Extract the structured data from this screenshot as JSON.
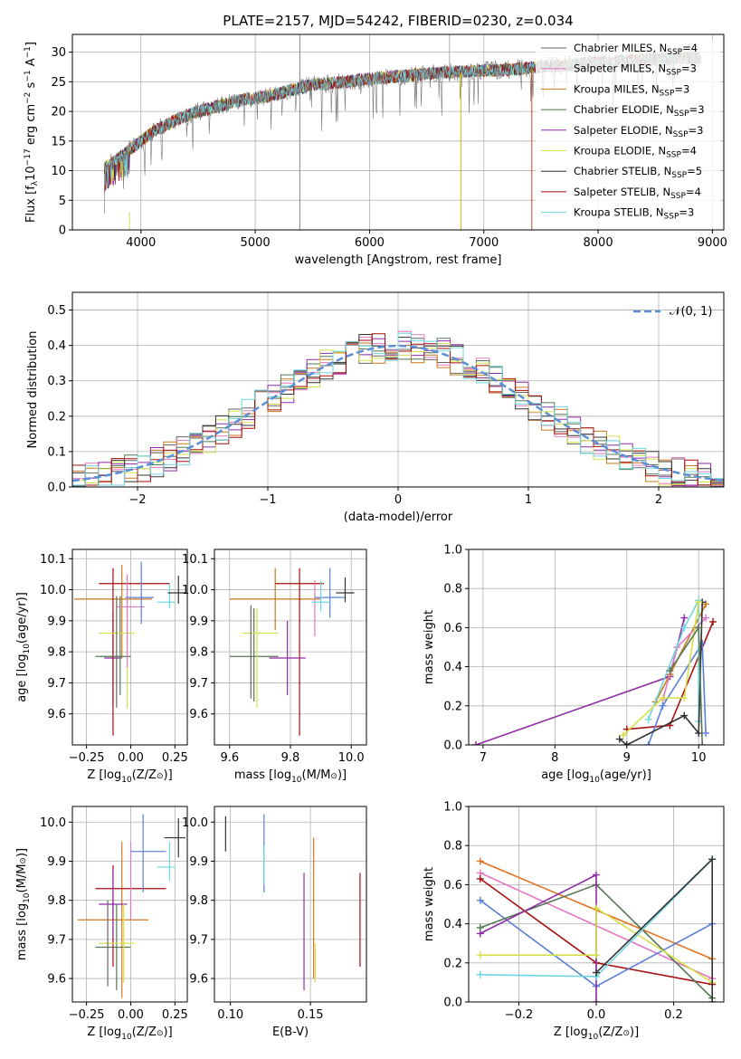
{
  "figure": {
    "title": "PLATE=2157, MJD=54242, FIBERID=0230, z=0.034"
  },
  "colors": {
    "c0": "#666666",
    "c1": "#e377c2",
    "c2": "#cc7a1c",
    "c3": "#557755",
    "c4": "#8e2ba5",
    "c5": "#d6e04a",
    "c6": "#333333",
    "c7": "#a50f0f",
    "c8": "#6fd6e0",
    "axis_blue": "#5b8fd6",
    "orange": "#e4701e",
    "blue": "#5b7fd6"
  },
  "chart_data": [
    {
      "id": "spectrum",
      "type": "line",
      "title": "PLATE=2157, MJD=54242, FIBERID=0230, z=0.034",
      "xlabel": "wavelength [Angstrom, rest frame]",
      "ylabel": "Flux [f",
      "ylabel_parts": [
        "Flux [f",
        "λ",
        "10",
        "−17",
        " erg cm",
        "−2",
        " s",
        "−1",
        " A",
        "−1",
        "]"
      ],
      "xlim": [
        3400,
        9100
      ],
      "ylim": [
        0,
        33
      ],
      "xticks": [
        "4000",
        "5000",
        "6000",
        "7000",
        "8000",
        "9000"
      ],
      "yticks": [
        "0",
        "5",
        "10",
        "15",
        "20",
        "25",
        "30"
      ],
      "legend_position": "top-right",
      "legend": [
        {
          "base": "Chabrier MILES, N",
          "sub": "SSP",
          "tail": "=4"
        },
        {
          "base": "Salpeter MILES, N",
          "sub": "SSP",
          "tail": "=3"
        },
        {
          "base": "Kroupa MILES, N",
          "sub": "SSP",
          "tail": "=3"
        },
        {
          "base": "Chabrier ELODIE, N",
          "sub": "SSP",
          "tail": "=3"
        },
        {
          "base": "Salpeter ELODIE, N",
          "sub": "SSP",
          "tail": "=3"
        },
        {
          "base": "Kroupa ELODIE, N",
          "sub": "SSP",
          "tail": "=4"
        },
        {
          "base": "Chabrier STELIB, N",
          "sub": "SSP",
          "tail": "=5"
        },
        {
          "base": "Salpeter STELIB, N",
          "sub": "SSP",
          "tail": "=4"
        },
        {
          "base": "Kroupa STELIB, N",
          "sub": "SSP",
          "tail": "=3"
        }
      ],
      "continuum": [
        [
          3680,
          10.5
        ],
        [
          3800,
          12
        ],
        [
          3900,
          13.5
        ],
        [
          4000,
          15
        ],
        [
          4100,
          16.5
        ],
        [
          4200,
          17.5
        ],
        [
          4300,
          18.5
        ],
        [
          4500,
          20
        ],
        [
          4700,
          21
        ],
        [
          4900,
          22
        ],
        [
          5100,
          22.5
        ],
        [
          5300,
          23.5
        ],
        [
          5500,
          24.5
        ],
        [
          5800,
          25
        ],
        [
          6000,
          25.5
        ],
        [
          6300,
          26
        ],
        [
          6600,
          26.5
        ],
        [
          6900,
          26.8
        ],
        [
          7200,
          27
        ],
        [
          7500,
          27.5
        ],
        [
          7800,
          28
        ],
        [
          8200,
          28.5
        ],
        [
          8500,
          28.8
        ],
        [
          8800,
          29
        ],
        [
          8900,
          29
        ]
      ]
    },
    {
      "id": "residuals",
      "type": "step",
      "xlabel": "(data-model)/error",
      "ylabel": "Normed distribution",
      "xlim": [
        -2.5,
        2.5
      ],
      "ylim": [
        0,
        0.55
      ],
      "xticks": [
        "−2",
        "−1",
        "0",
        "1",
        "2"
      ],
      "yticks": [
        "0.0",
        "0.1",
        "0.2",
        "0.3",
        "0.4",
        "0.5"
      ],
      "legend": "𝒩(0, 1)",
      "legend_position": "top-right",
      "bin_width": 0.1
    },
    {
      "id": "age-Z",
      "type": "errorbar",
      "xlabel": "Z [log",
      "xlabel_parts": [
        "Z [log",
        "10",
        "(Z/Z",
        "⊙",
        ")]"
      ],
      "ylabel_parts": [
        "age  [log",
        "10",
        "(age/yr)]"
      ],
      "xlim": [
        -0.33,
        0.32
      ],
      "ylim": [
        9.5,
        10.13
      ],
      "xticks": [
        "−0.25",
        "0.00",
        "0.25"
      ],
      "yticks": [
        "9.6",
        "9.7",
        "9.8",
        "9.9",
        "10.0",
        "10.1"
      ],
      "points": [
        {
          "c": "c2",
          "x": -0.1,
          "xe": 0.22,
          "y": 9.97,
          "ye": 0
        },
        {
          "c": "c2",
          "x": -0.05,
          "xe": 0,
          "y": 9.93,
          "ye": 0.15
        },
        {
          "c": "c4",
          "x": -0.1,
          "xe": 0.05,
          "y": 9.78,
          "ye": 0.15
        },
        {
          "c": "c7",
          "x": 0.02,
          "xe": 0.2,
          "y": 10.02,
          "ye": 0
        },
        {
          "c": "c7",
          "x": -0.1,
          "xe": 0,
          "y": 9.8,
          "ye": 0.27
        },
        {
          "c": "c3",
          "x": -0.1,
          "xe": 0.1,
          "y": 9.785,
          "ye": 0
        },
        {
          "c": "c3",
          "x": -0.06,
          "xe": 0,
          "y": 9.82,
          "ye": 0.16
        },
        {
          "c": "c5",
          "x": -0.08,
          "xe": 0.1,
          "y": 9.86,
          "ye": 0
        },
        {
          "c": "c5",
          "x": -0.02,
          "xe": 0,
          "y": 9.78,
          "ye": 0.16
        },
        {
          "c": "c1",
          "x": 0,
          "xe": 0.08,
          "y": 9.945,
          "ye": 0
        },
        {
          "c": "c1",
          "x": -0.02,
          "xe": 0,
          "y": 9.9,
          "ye": 0.15
        },
        {
          "c": "blue",
          "x": 0.06,
          "xe": 0,
          "y": 9.99,
          "ye": 0.1
        },
        {
          "c": "blue",
          "x": 0.05,
          "xe": 0.08,
          "y": 9.975,
          "ye": 0
        },
        {
          "c": "c8",
          "x": 0.2,
          "xe": 0.05,
          "y": 9.96,
          "ye": 0
        },
        {
          "c": "c8",
          "x": 0.22,
          "xe": 0,
          "y": 9.98,
          "ye": 0.04
        },
        {
          "c": "c6",
          "x": 0.27,
          "xe": 0.06,
          "y": 9.99,
          "ye": 0
        },
        {
          "c": "c6",
          "x": 0.27,
          "xe": 0,
          "y": 10.0,
          "ye": 0.045
        },
        {
          "c": "c0",
          "x": -0.08,
          "xe": 0,
          "y": 9.8,
          "ye": 0.18
        }
      ]
    },
    {
      "id": "age-mass",
      "type": "errorbar",
      "xlabel_parts": [
        "mass [log",
        "10",
        "(M/M",
        "⊙",
        ")]"
      ],
      "xlim": [
        9.55,
        10.05
      ],
      "ylim": [
        9.5,
        10.13
      ],
      "xticks": [
        "9.6",
        "9.8",
        "10.0"
      ],
      "yticks": [
        "9.6",
        "9.7",
        "9.8",
        "9.9",
        "10.0",
        "10.1"
      ],
      "points": [
        {
          "c": "c2",
          "x": 9.75,
          "xe": 0.15,
          "y": 9.97,
          "ye": 0
        },
        {
          "c": "c2",
          "x": 9.75,
          "xe": 0,
          "y": 9.97,
          "ye": 0.1
        },
        {
          "c": "c7",
          "x": 9.83,
          "xe": 0.08,
          "y": 10.02,
          "ye": 0
        },
        {
          "c": "c7",
          "x": 9.83,
          "xe": 0,
          "y": 9.8,
          "ye": 0.27
        },
        {
          "c": "c4",
          "x": 9.79,
          "xe": 0.06,
          "y": 9.78,
          "ye": 0
        },
        {
          "c": "c4",
          "x": 9.79,
          "xe": 0,
          "y": 9.78,
          "ye": 0.12
        },
        {
          "c": "c3",
          "x": 9.68,
          "xe": 0.08,
          "y": 9.785,
          "ye": 0
        },
        {
          "c": "c3",
          "x": 9.68,
          "xe": 0,
          "y": 9.79,
          "ye": 0.15
        },
        {
          "c": "c5",
          "x": 9.7,
          "xe": 0.06,
          "y": 9.86,
          "ye": 0
        },
        {
          "c": "c5",
          "x": 9.69,
          "xe": 0,
          "y": 9.78,
          "ye": 0.16
        },
        {
          "c": "c1",
          "x": 9.88,
          "xe": 0,
          "y": 9.94,
          "ye": 0.09
        },
        {
          "c": "blue",
          "x": 9.93,
          "xe": 0.05,
          "y": 9.975,
          "ye": 0
        },
        {
          "c": "blue",
          "x": 9.93,
          "xe": 0,
          "y": 9.99,
          "ye": 0.08
        },
        {
          "c": "c8",
          "x": 9.9,
          "xe": 0.03,
          "y": 9.96,
          "ye": 0
        },
        {
          "c": "c8",
          "x": 9.9,
          "xe": 0,
          "y": 9.98,
          "ye": 0.05
        },
        {
          "c": "c6",
          "x": 9.98,
          "xe": 0.03,
          "y": 9.99,
          "ye": 0
        },
        {
          "c": "c6",
          "x": 9.98,
          "xe": 0,
          "y": 10.0,
          "ye": 0.04
        },
        {
          "c": "c0",
          "x": 9.67,
          "xe": 0,
          "y": 9.8,
          "ye": 0.15
        }
      ]
    },
    {
      "id": "weight-age",
      "type": "line",
      "ylabel": "mass weight",
      "xlabel_parts": [
        "age  [log",
        "10",
        "(age/yr)]"
      ],
      "xlim": [
        6.8,
        10.35
      ],
      "ylim": [
        0,
        1
      ],
      "xticks": [
        "7",
        "8",
        "9",
        "10"
      ],
      "yticks": [
        "0.0",
        "0.2",
        "0.4",
        "0.6",
        "0.8",
        "1.0"
      ],
      "series": [
        {
          "c": "c4",
          "pts": [
            [
              6.9,
              0.0
            ],
            [
              9.6,
              0.35
            ],
            [
              9.8,
              0.65
            ]
          ]
        },
        {
          "c": "c2",
          "pts": [
            [
              9.4,
              0.22
            ],
            [
              9.6,
              0.36
            ],
            [
              10.1,
              0.72
            ]
          ]
        },
        {
          "c": "c7",
          "pts": [
            [
              9.0,
              0.08
            ],
            [
              9.6,
              0.1
            ],
            [
              10.2,
              0.63
            ]
          ]
        },
        {
          "c": "c1",
          "pts": [
            [
              9.5,
              0.23
            ],
            [
              9.7,
              0.5
            ],
            [
              10.1,
              0.65
            ]
          ]
        },
        {
          "c": "blue",
          "pts": [
            [
              9.3,
              0.0
            ],
            [
              9.5,
              0.2
            ],
            [
              10.05,
              0.52
            ],
            [
              10.1,
              0.06
            ]
          ]
        },
        {
          "c": "c8",
          "pts": [
            [
              9.3,
              0.13
            ],
            [
              9.8,
              0.6
            ],
            [
              10.0,
              0.74
            ],
            [
              10.0,
              0.12
            ]
          ]
        },
        {
          "c": "c6",
          "pts": [
            [
              8.9,
              0.03
            ],
            [
              9.0,
              0.0
            ],
            [
              9.8,
              0.15
            ],
            [
              10.0,
              0.06
            ],
            [
              10.05,
              0.73
            ]
          ]
        },
        {
          "c": "c5",
          "pts": [
            [
              8.95,
              0.05
            ],
            [
              9.5,
              0.24
            ],
            [
              9.8,
              0.24
            ],
            [
              10.0,
              0.73
            ]
          ]
        },
        {
          "c": "c3",
          "pts": [
            [
              9.6,
              0.38
            ],
            [
              10.0,
              0.6
            ],
            [
              10.05,
              0.0
            ]
          ]
        }
      ]
    },
    {
      "id": "mass-Z",
      "type": "errorbar",
      "xlabel_parts": [
        "Z [log",
        "10",
        "(Z/Z",
        "⊙",
        ")]"
      ],
      "ylabel_parts": [
        "mass [log",
        "10",
        "(M/M",
        "⊙",
        ")]"
      ],
      "xlim": [
        -0.33,
        0.32
      ],
      "ylim": [
        9.54,
        10.04
      ],
      "xticks": [
        "−0.25",
        "0.00",
        "0.25"
      ],
      "yticks": [
        "9.6",
        "9.7",
        "9.8",
        "9.9",
        "10.0"
      ],
      "points": [
        {
          "c": "c2",
          "x": -0.1,
          "xe": 0.2,
          "y": 9.75,
          "ye": 0
        },
        {
          "c": "c2",
          "x": -0.05,
          "xe": 0,
          "y": 9.75,
          "ye": 0.2
        },
        {
          "c": "c7",
          "x": 0.0,
          "xe": 0.2,
          "y": 9.83,
          "ye": 0
        },
        {
          "c": "c7",
          "x": -0.1,
          "xe": 0,
          "y": 9.76,
          "ye": 0.13
        },
        {
          "c": "c4",
          "x": -0.1,
          "xe": 0.08,
          "y": 9.79,
          "ye": 0
        },
        {
          "c": "c4",
          "x": -0.1,
          "xe": 0,
          "y": 9.79,
          "ye": 0.09
        },
        {
          "c": "c3",
          "x": -0.1,
          "xe": 0.1,
          "y": 9.68,
          "ye": 0
        },
        {
          "c": "c3",
          "x": -0.08,
          "xe": 0,
          "y": 9.68,
          "ye": 0.11
        },
        {
          "c": "c5",
          "x": -0.08,
          "xe": 0.1,
          "y": 9.69,
          "ye": 0
        },
        {
          "c": "c5",
          "x": -0.04,
          "xe": 0,
          "y": 9.69,
          "ye": 0.1
        },
        {
          "c": "c1",
          "x": 0,
          "xe": 0,
          "y": 9.85,
          "ye": 0.1
        },
        {
          "c": "blue",
          "x": 0.1,
          "xe": 0.1,
          "y": 9.925,
          "ye": 0
        },
        {
          "c": "blue",
          "x": 0.07,
          "xe": 0,
          "y": 9.92,
          "ye": 0.1
        },
        {
          "c": "c8",
          "x": 0.2,
          "xe": 0.05,
          "y": 9.885,
          "ye": 0
        },
        {
          "c": "c8",
          "x": 0.22,
          "xe": 0,
          "y": 9.9,
          "ye": 0.05
        },
        {
          "c": "c6",
          "x": 0.25,
          "xe": 0.06,
          "y": 9.96,
          "ye": 0
        },
        {
          "c": "c6",
          "x": 0.27,
          "xe": 0,
          "y": 9.96,
          "ye": 0.05
        },
        {
          "c": "c0",
          "x": -0.13,
          "xe": 0,
          "y": 9.69,
          "ye": 0.11
        }
      ]
    },
    {
      "id": "mass-EBV",
      "type": "errorbar",
      "xlabel": "E(B-V)",
      "xlim": [
        0.09,
        0.185
      ],
      "ylim": [
        9.54,
        10.04
      ],
      "xticks": [
        "0.10",
        "0.15"
      ],
      "yticks": [
        "9.6",
        "9.7",
        "9.8",
        "9.9",
        "10.0"
      ],
      "points": [
        {
          "c": "c6",
          "x": 0.097,
          "xe": 0,
          "y": 9.97,
          "ye": 0.045
        },
        {
          "c": "blue",
          "x": 0.121,
          "xe": 0,
          "y": 9.92,
          "ye": 0.1
        },
        {
          "c": "c8",
          "x": 0.121,
          "xe": 0,
          "y": 9.89,
          "ye": 0.05
        },
        {
          "c": "c4",
          "x": 0.146,
          "xe": 0,
          "y": 9.72,
          "ye": 0.15
        },
        {
          "c": "c2",
          "x": 0.152,
          "xe": 0,
          "y": 9.78,
          "ye": 0.18
        },
        {
          "c": "c5",
          "x": 0.153,
          "xe": 0,
          "y": 9.64,
          "ye": 0.05
        },
        {
          "c": "c7",
          "x": 0.181,
          "xe": 0,
          "y": 9.75,
          "ye": 0.12
        }
      ]
    },
    {
      "id": "weight-Z",
      "type": "line",
      "ylabel": "mass weight",
      "xlabel_parts": [
        "Z [log",
        "10",
        "(Z/Z",
        "⊙",
        ")]"
      ],
      "xlim": [
        -0.33,
        0.33
      ],
      "ylim": [
        0,
        1
      ],
      "xticks": [
        "−0.2",
        "0.0",
        "0.2"
      ],
      "yticks": [
        "0.0",
        "0.2",
        "0.4",
        "0.6",
        "0.8",
        "1.0"
      ],
      "series": [
        {
          "c": "orange",
          "pts": [
            [
              -0.3,
              0.72
            ],
            [
              0.3,
              0.22
            ]
          ]
        },
        {
          "c": "c1",
          "pts": [
            [
              -0.3,
              0.66
            ],
            [
              0.3,
              0.12
            ]
          ]
        },
        {
          "c": "c7",
          "pts": [
            [
              -0.3,
              0.63
            ],
            [
              0.0,
              0.2
            ],
            [
              0.3,
              0.09
            ]
          ]
        },
        {
          "c": "blue",
          "pts": [
            [
              -0.3,
              0.52
            ],
            [
              0.0,
              0.08
            ],
            [
              0.3,
              0.4
            ]
          ]
        },
        {
          "c": "c3",
          "pts": [
            [
              -0.3,
              0.38
            ],
            [
              0.0,
              0.6
            ],
            [
              0.3,
              0.02
            ]
          ]
        },
        {
          "c": "c4",
          "pts": [
            [
              -0.3,
              0.35
            ],
            [
              0.0,
              0.65
            ],
            [
              0.0,
              0.0
            ]
          ]
        },
        {
          "c": "c5",
          "pts": [
            [
              -0.3,
              0.24
            ],
            [
              0.0,
              0.24
            ],
            [
              0.0,
              0.48
            ],
            [
              0.3,
              0.1
            ]
          ]
        },
        {
          "c": "c8",
          "pts": [
            [
              -0.3,
              0.14
            ],
            [
              0.0,
              0.13
            ],
            [
              0.3,
              0.73
            ]
          ]
        },
        {
          "c": "c6",
          "pts": [
            [
              0.0,
              0.15
            ],
            [
              0.3,
              0.73
            ],
            [
              0.3,
              0.0
            ]
          ]
        }
      ]
    }
  ]
}
